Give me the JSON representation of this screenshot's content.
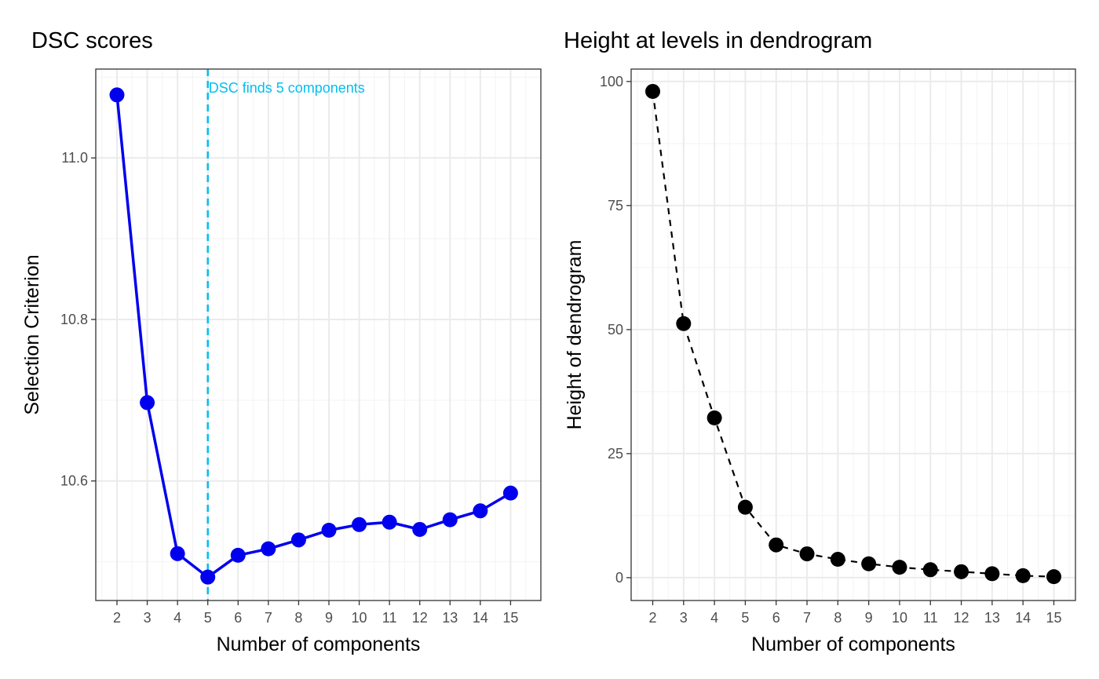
{
  "chart_data": [
    {
      "type": "line",
      "title": "DSC scores",
      "xlabel": "Number of components",
      "ylabel": "Selection Criterion",
      "x": [
        2,
        3,
        4,
        5,
        6,
        7,
        8,
        9,
        10,
        11,
        12,
        13,
        14,
        15
      ],
      "xlim": [
        1.3,
        16.0
      ],
      "ylim": [
        10.452,
        11.11
      ],
      "x_ticks": [
        "2",
        "3",
        "4",
        "5",
        "6",
        "7",
        "8",
        "9",
        "10",
        "11",
        "12",
        "13",
        "14",
        "15"
      ],
      "y_ticks": [
        "10.6",
        "10.8",
        "11.0"
      ],
      "y_tick_values": [
        10.6,
        10.8,
        11.0
      ],
      "grid": true,
      "series": [
        {
          "values": [
            11.078,
            10.697,
            10.51,
            10.481,
            10.508,
            10.516,
            10.527,
            10.539,
            10.546,
            10.549,
            10.54,
            10.552,
            10.563,
            10.585
          ],
          "color": "#0000ee",
          "line_style": "solid",
          "marker": "filled-circle"
        }
      ],
      "reference_line": {
        "x": 5,
        "label": "DSC finds 5 components",
        "color": "#00bfef",
        "style": "dashed"
      }
    },
    {
      "type": "line",
      "title": "Height at levels in dendrogram",
      "xlabel": "Number of components",
      "ylabel": "Height of dendrogram",
      "x": [
        2,
        3,
        4,
        5,
        6,
        7,
        8,
        9,
        10,
        11,
        12,
        13,
        14,
        15
      ],
      "xlim": [
        1.3,
        15.7
      ],
      "ylim": [
        -4.6,
        102.5
      ],
      "x_ticks": [
        "2",
        "3",
        "4",
        "5",
        "6",
        "7",
        "8",
        "9",
        "10",
        "11",
        "12",
        "13",
        "14",
        "15"
      ],
      "y_ticks": [
        "0",
        "25",
        "50",
        "75",
        "100"
      ],
      "y_tick_values": [
        0,
        25,
        50,
        75,
        100
      ],
      "grid": true,
      "series": [
        {
          "values": [
            98.0,
            51.2,
            32.2,
            14.2,
            6.6,
            4.8,
            3.7,
            2.8,
            2.1,
            1.6,
            1.2,
            0.8,
            0.4,
            0.2
          ],
          "color": "#000000",
          "line_style": "dashed",
          "marker": "filled-circle"
        }
      ]
    }
  ]
}
